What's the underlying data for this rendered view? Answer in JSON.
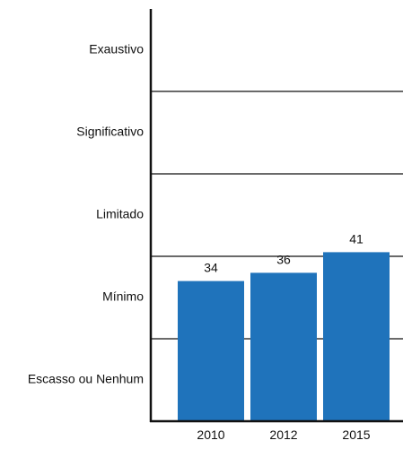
{
  "chart_data": {
    "type": "bar",
    "categories": [
      "2010",
      "2012",
      "2015"
    ],
    "values": [
      34,
      36,
      41
    ],
    "data_labels": [
      "34",
      "36",
      "41"
    ],
    "y_categories": [
      "Escasso ou Nenhum",
      "Mínimo",
      "Limitado",
      "Significativo",
      "Exaustivo"
    ],
    "ylim": [
      0,
      100
    ],
    "grid": true,
    "legend": "none",
    "colors": {
      "bar": "#1f73bb",
      "axis": "#111111",
      "grid": "#111111",
      "text": "#111111"
    }
  }
}
